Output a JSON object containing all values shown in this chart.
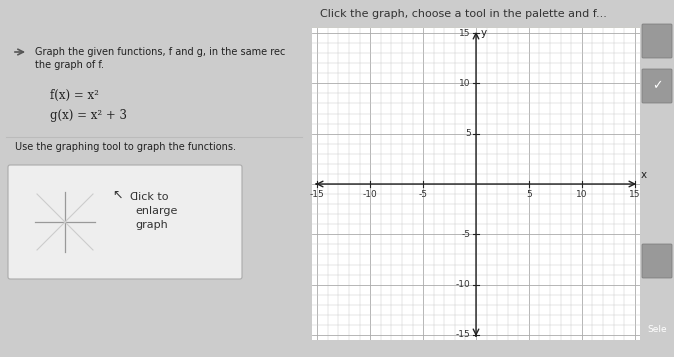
{
  "title_bar_text": "Click the graph, choose a tool in the palette and f...",
  "title_bar_bg": "#ffffcc",
  "title_bar_border": "#cccc88",
  "top_bar_bg": "#5bb8d4",
  "left_bg": "#f0f0f0",
  "left_border_bg": "#d8d8d8",
  "right_bg": "#ffffff",
  "grid_bg": "#ffffff",
  "grid_minor_color": "#cccccc",
  "grid_major_color": "#aaaaaa",
  "axis_color": "#222222",
  "instruction_line1": "Graph the given functions, f and g, in the same rec",
  "instruction_line2": "the graph of f.",
  "func_f": "f(x) = x²",
  "func_g": "g(x) = x² + 3",
  "use_tool_text": "Use the graphing tool to graph the functions.",
  "click_enlarge_text": "lick to\nenlarge\ngraph",
  "xlabel": "x",
  "ylabel": "y",
  "xlim": [
    -15,
    15
  ],
  "ylim": [
    -15,
    15
  ],
  "xticks": [
    -15,
    -10,
    -5,
    5,
    10,
    15
  ],
  "yticks": [
    -15,
    -10,
    -5,
    5,
    10,
    15
  ],
  "side_panel_bg": "#666666",
  "side_button_bg": "#888888",
  "sele_text": "Sele",
  "overall_bg": "#cccccc",
  "divider_color": "#bbbbbb"
}
